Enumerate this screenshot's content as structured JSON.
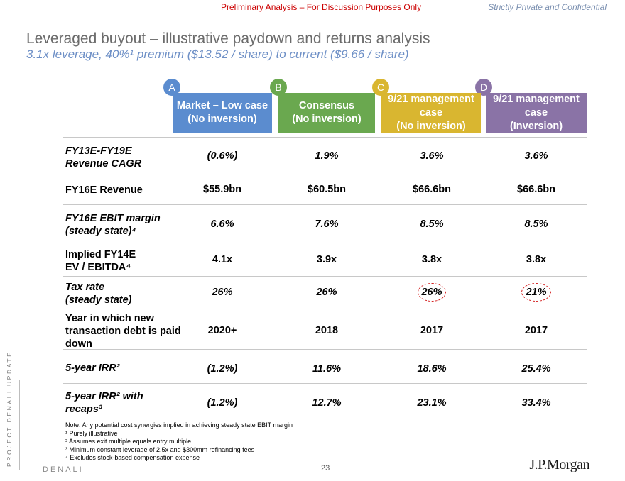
{
  "header": {
    "banner": "Preliminary Analysis – For Discussion Purposes Only",
    "confidential": "Strictly Private and Confidential"
  },
  "title": "Leveraged buyout – illustrative paydown and returns analysis",
  "subtitle": "3.1x leverage, 40%¹ premium ($13.52 / share) to current ($9.66 / share)",
  "scenarios": [
    {
      "letter": "A",
      "line1": "Market – Low case",
      "line2": "(No inversion)",
      "line3": "",
      "color": "#5b8ccf"
    },
    {
      "letter": "B",
      "line1": "Consensus",
      "line2": "(No inversion)",
      "line3": "",
      "color": "#6aa84f"
    },
    {
      "letter": "C",
      "line1": "9/21 management",
      "line2": "case",
      "line3": "(No inversion)",
      "color": "#d9b630"
    },
    {
      "letter": "D",
      "line1": "9/21 management",
      "line2": "case",
      "line3": "(Inversion)",
      "color": "#8a73a6"
    }
  ],
  "rows": [
    {
      "label": [
        "FY13E-FY19E",
        "Revenue CAGR"
      ],
      "values": [
        "(0.6%)",
        "1.9%",
        "3.6%",
        "3.6%"
      ]
    },
    {
      "label": [
        "FY16E Revenue"
      ],
      "values": [
        "$55.9bn",
        "$60.5bn",
        "$66.6bn",
        "$66.6bn"
      ]
    },
    {
      "label": [
        "FY16E EBIT margin",
        "(steady state)⁴"
      ],
      "values": [
        "6.6%",
        "7.6%",
        "8.5%",
        "8.5%"
      ]
    },
    {
      "label": [
        "Implied FY14E",
        "EV / EBITDA⁴"
      ],
      "values": [
        "4.1x",
        "3.9x",
        "3.8x",
        "3.8x"
      ]
    },
    {
      "label": [
        "Tax rate",
        "(steady state)"
      ],
      "values": [
        "26%",
        "26%",
        "26%",
        "21%"
      ]
    },
    {
      "label": [
        "Year in which new",
        "transaction debt is paid",
        "down"
      ],
      "values": [
        "2020+",
        "2018",
        "2017",
        "2017"
      ]
    },
    {
      "label": [
        "5-year IRR²"
      ],
      "values": [
        "(1.2%)",
        "11.6%",
        "18.6%",
        "25.4%"
      ]
    },
    {
      "label": [
        "5-year IRR² with",
        "recaps³"
      ],
      "values": [
        "(1.2%)",
        "12.7%",
        "23.1%",
        "33.4%"
      ]
    }
  ],
  "notes": [
    "Note: Any potential cost synergies implied in achieving steady state EBIT margin",
    "¹ Purely illustrative",
    "² Assumes exit multiple equals entry multiple",
    "³ Minimum constant leverage of 2.5x and $300mm refinancing fees",
    "⁴ Excludes stock-based compensation expense"
  ],
  "footer": {
    "side_label": "PROJECT DENALI UPDATE",
    "project": "DENALI",
    "page_number": "23",
    "logo": "J.P.Morgan"
  }
}
